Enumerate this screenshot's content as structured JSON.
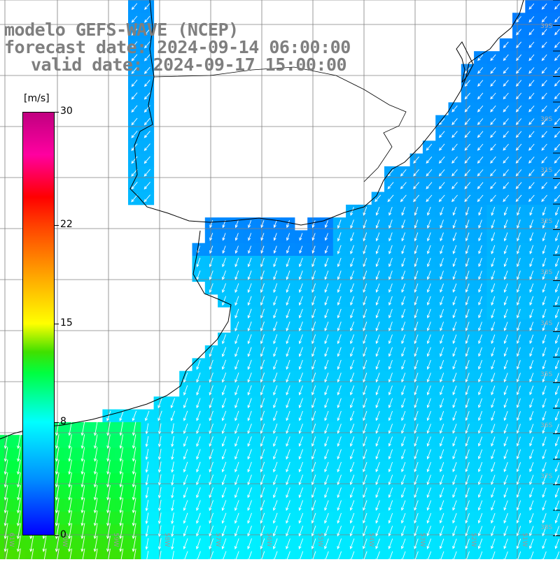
{
  "title": {
    "line1": "modelo GEFS-WAVE (NCEP)",
    "line2": "forecast date: 2024-09-14 06:00:00",
    "line3": "valid date: 2024-09-17 15:00:00"
  },
  "colorbar": {
    "units": "[m/s]",
    "min": 0,
    "max": 30,
    "ticks": [
      {
        "value": 30,
        "label": "30"
      },
      {
        "value": 22,
        "label": "22"
      },
      {
        "value": 15,
        "label": "15"
      },
      {
        "value": 8,
        "label": "8"
      },
      {
        "value": 0,
        "label": "0"
      }
    ],
    "stops": [
      {
        "value": 0,
        "color": "#0000ff"
      },
      {
        "value": 4,
        "color": "#0090ff"
      },
      {
        "value": 8,
        "color": "#00ffff"
      },
      {
        "value": 11.5,
        "color": "#00ff40"
      },
      {
        "value": 13,
        "color": "#40e000"
      },
      {
        "value": 15,
        "color": "#ffff00"
      },
      {
        "value": 18,
        "color": "#ffb000"
      },
      {
        "value": 22,
        "color": "#ff4000"
      },
      {
        "value": 24,
        "color": "#ff0000"
      },
      {
        "value": 27,
        "color": "#ff00a0"
      },
      {
        "value": 30,
        "color": "#c00080"
      }
    ]
  },
  "map": {
    "land_color": "#ffffff",
    "grid_color": "#808080",
    "coast_color": "#000000",
    "vector_color": "#ffffff",
    "wind_direction": "NNE to SSW",
    "longitude_labels": [
      "61W",
      "60W",
      "59W",
      "58W",
      "57W",
      "56W",
      "55W",
      "54W",
      "53W",
      "52W",
      "51W"
    ],
    "latitude_labels": [
      "30S",
      "31S",
      "32S",
      "33S",
      "34S",
      "35S",
      "36S",
      "37S",
      "38S",
      "39S"
    ],
    "speed_regions": [
      {
        "region": "Rio de la Plata estuary",
        "speed": 3
      },
      {
        "region": "open ocean east",
        "speed": 5
      },
      {
        "region": "coastal shelf south",
        "speed": 8
      },
      {
        "region": "southwest corner",
        "speed": 12
      }
    ]
  }
}
